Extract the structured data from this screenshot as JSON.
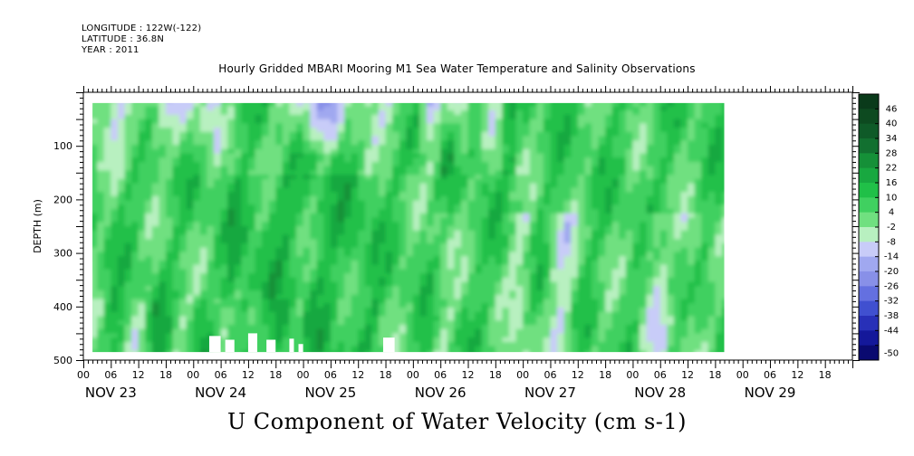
{
  "header": {
    "longitude": "LONGITUDE : 122W(-122)",
    "latitude": "LATITUDE : 36.8N",
    "year": "YEAR : 2011"
  },
  "title": "Hourly Gridded MBARI Mooring M1 Sea Water Temperature and Salinity Observations",
  "subtitle": "U Component of Water Velocity (cm s-1)",
  "chart_data": {
    "type": "heatmap",
    "title": "Hourly Gridded MBARI Mooring M1 Sea Water Temperature and Salinity Observations",
    "variable": "U Component of Water Velocity (cm s-1)",
    "xlabel": "",
    "ylabel": "DEPTH (m)",
    "y_range": [
      0,
      500
    ],
    "y_inverted": true,
    "y_ticks": [
      "100",
      "200",
      "300",
      "400",
      "500"
    ],
    "x_range_hours": [
      0,
      168
    ],
    "x_hour_labels": [
      "00",
      "06",
      "12",
      "18"
    ],
    "x_dates": [
      "NOV 23",
      "NOV 24",
      "NOV 25",
      "NOV 26",
      "NOV 27",
      "NOV 28",
      "NOV 29"
    ],
    "data_extent": {
      "depth_m": [
        20,
        485
      ],
      "start": "NOV 23 02",
      "end": "NOV 28 20"
    },
    "colorbar": {
      "min": -50,
      "max": 50,
      "labels": [
        "46",
        "40",
        "34",
        "28",
        "22",
        "16",
        "10",
        "4",
        "-2",
        "-8",
        "-14",
        "-20",
        "-26",
        "-32",
        "-38",
        "-44",
        "-50"
      ],
      "colors": [
        "#0a3a1a",
        "#0d4a20",
        "#0f5a28",
        "#127030",
        "#159038",
        "#18a840",
        "#20c048",
        "#40d060",
        "#70e080",
        "#b8f0c0",
        "#c8ccf8",
        "#a0a8f0",
        "#8890e8",
        "#6470e0",
        "#4050d0",
        "#2830b8",
        "#14189a",
        "#0a0a70"
      ]
    }
  }
}
